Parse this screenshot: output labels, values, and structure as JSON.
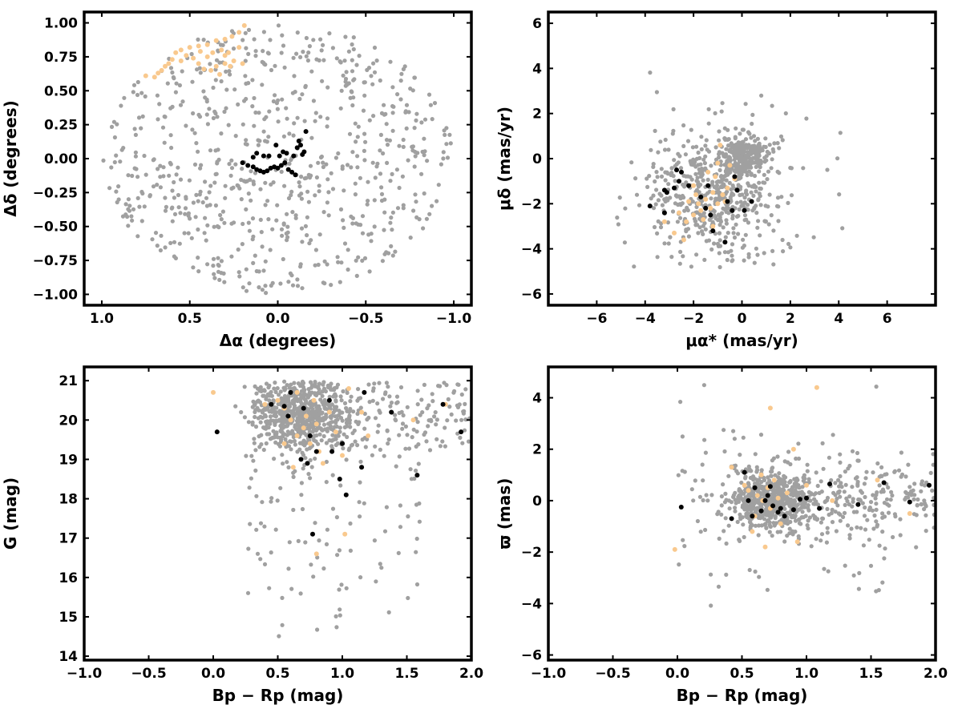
{
  "colors": {
    "field": "#a0a0a0",
    "core": "#000000",
    "selected": "#f9c98e"
  },
  "chart_data": [
    {
      "type": "scatter",
      "xlabel": "Δα (degrees)",
      "ylabel": "Δδ (degrees)",
      "xlim": [
        1.1,
        -1.1
      ],
      "ylim": [
        -1.08,
        1.08
      ],
      "xticks": [
        1.0,
        0.5,
        0.0,
        -0.5,
        -1.0
      ],
      "xtick_labels": [
        "1.0",
        "0.5",
        "0.0",
        "−0.5",
        "−1.0"
      ],
      "yticks": [
        1.0,
        0.75,
        0.5,
        0.25,
        0.0,
        -0.25,
        -0.5,
        -0.75,
        -1.0
      ],
      "ytick_labels": [
        "1.00",
        "0.75",
        "0.50",
        "0.25",
        "0.00",
        "−0.25",
        "−0.50",
        "−0.75",
        "−1.00"
      ],
      "grid": false,
      "series": [
        {
          "color": "#a0a0a0",
          "pattern": "uniform disk of radius 1.0 deg",
          "count": 720
        },
        {
          "color": "#f9c98e",
          "points": [
            [
              0.19,
              0.98
            ],
            [
              0.22,
              0.93
            ],
            [
              0.26,
              0.9
            ],
            [
              0.3,
              0.88
            ],
            [
              0.35,
              0.87
            ],
            [
              0.4,
              0.84
            ],
            [
              0.45,
              0.83
            ],
            [
              0.5,
              0.82
            ],
            [
              0.55,
              0.8
            ],
            [
              0.58,
              0.78
            ],
            [
              0.6,
              0.73
            ],
            [
              0.62,
              0.7
            ],
            [
              0.64,
              0.68
            ],
            [
              0.66,
              0.65
            ],
            [
              0.68,
              0.63
            ],
            [
              0.7,
              0.6
            ],
            [
              0.75,
              0.61
            ],
            [
              0.2,
              0.7
            ],
            [
              0.25,
              0.72
            ],
            [
              0.3,
              0.76
            ],
            [
              0.32,
              0.8
            ],
            [
              0.28,
              0.78
            ],
            [
              0.35,
              0.68
            ],
            [
              0.38,
              0.65
            ],
            [
              0.42,
              0.66
            ],
            [
              0.45,
              0.7
            ],
            [
              0.4,
              0.75
            ],
            [
              0.48,
              0.74
            ],
            [
              0.52,
              0.76
            ],
            [
              0.27,
              0.68
            ],
            [
              0.33,
              0.62
            ],
            [
              0.22,
              0.82
            ],
            [
              0.37,
              0.78
            ],
            [
              0.44,
              0.79
            ],
            [
              0.55,
              0.72
            ],
            [
              0.3,
              0.7
            ]
          ]
        },
        {
          "color": "#000000",
          "points": [
            [
              0.2,
              -0.03
            ],
            [
              0.17,
              -0.05
            ],
            [
              0.14,
              -0.06
            ],
            [
              0.12,
              -0.08
            ],
            [
              0.1,
              -0.09
            ],
            [
              0.08,
              -0.1
            ],
            [
              0.06,
              -0.09
            ],
            [
              0.04,
              -0.07
            ],
            [
              0.02,
              -0.06
            ],
            [
              0.0,
              -0.07
            ],
            [
              -0.02,
              -0.05
            ],
            [
              -0.04,
              -0.03
            ],
            [
              -0.06,
              -0.08
            ],
            [
              -0.08,
              -0.1
            ],
            [
              -0.1,
              -0.12
            ],
            [
              -0.12,
              0.13
            ],
            [
              -0.13,
              0.1
            ],
            [
              -0.15,
              0.05
            ],
            [
              -0.14,
              0.03
            ],
            [
              -0.11,
              0.08
            ],
            [
              -0.09,
              0.02
            ],
            [
              -0.05,
              0.04
            ],
            [
              -0.03,
              0.05
            ],
            [
              -0.01,
              0.02
            ],
            [
              0.01,
              0.1
            ],
            [
              0.05,
              0.02
            ],
            [
              0.08,
              0.02
            ],
            [
              0.12,
              0.04
            ],
            [
              0.14,
              0.01
            ],
            [
              -0.16,
              0.2
            ]
          ]
        }
      ]
    },
    {
      "type": "scatter",
      "xlabel": "μα* (mas/yr)",
      "ylabel": "μδ (mas/yr)",
      "xlim": [
        -8.0,
        8.0
      ],
      "ylim": [
        -6.5,
        6.5
      ],
      "xticks": [
        -6,
        -4,
        -2,
        0,
        2,
        4,
        6
      ],
      "xtick_labels": [
        "−6",
        "−4",
        "−2",
        "0",
        "2",
        "4",
        "6"
      ],
      "yticks": [
        6,
        4,
        2,
        0,
        -2,
        -4,
        -6
      ],
      "ytick_labels": [
        "6",
        "4",
        "2",
        "0",
        "−2",
        "−4",
        "−6"
      ],
      "grid": false,
      "series": [
        {
          "color": "#a0a0a0",
          "pattern": "broad cloud around (-1.0, -1.7) plus dense clump at (0.0, 0.0) and sparse outliers",
          "count": 820
        },
        {
          "color": "#f9c98e",
          "points": [
            [
              -1.0,
              -0.2
            ],
            [
              -0.5,
              -0.3
            ],
            [
              -1.2,
              -1.5
            ],
            [
              -1.5,
              -1.8
            ],
            [
              -1.8,
              -2.0
            ],
            [
              -1.3,
              -2.2
            ],
            [
              -1.0,
              -2.0
            ],
            [
              -0.8,
              -1.6
            ],
            [
              -2.0,
              -2.5
            ],
            [
              -2.3,
              -2.8
            ],
            [
              -2.6,
              -2.4
            ],
            [
              -1.6,
              -2.7
            ],
            [
              -1.1,
              -0.8
            ],
            [
              -0.6,
              -1.3
            ],
            [
              -0.3,
              -0.9
            ],
            [
              -2.0,
              -1.2
            ],
            [
              -1.4,
              -0.6
            ],
            [
              -0.9,
              0.6
            ],
            [
              -2.4,
              -3.6
            ],
            [
              -2.8,
              -3.3
            ],
            [
              -1.7,
              -2.3
            ],
            [
              -1.9,
              -1.6
            ],
            [
              -0.7,
              -1.9
            ],
            [
              -1.2,
              -3.0
            ],
            [
              -3.2,
              -2.8
            ],
            [
              -2.2,
              -1.9
            ]
          ]
        },
        {
          "color": "#000000",
          "points": [
            [
              -3.1,
              -1.5
            ],
            [
              -3.2,
              -1.4
            ],
            [
              -2.8,
              -1.3
            ],
            [
              -2.7,
              -0.5
            ],
            [
              -2.5,
              -0.6
            ],
            [
              -2.2,
              -1.2
            ],
            [
              -1.7,
              -1.7
            ],
            [
              -1.5,
              -2.2
            ],
            [
              -1.3,
              -2.5
            ],
            [
              -1.2,
              -3.2
            ],
            [
              -0.7,
              -3.7
            ],
            [
              -0.6,
              -1.9
            ],
            [
              -0.4,
              -2.3
            ],
            [
              -0.2,
              -1.4
            ],
            [
              0.1,
              -2.3
            ],
            [
              0.4,
              -1.9
            ],
            [
              -0.3,
              -0.8
            ],
            [
              -3.8,
              -2.1
            ],
            [
              -3.2,
              -2.4
            ],
            [
              -1.4,
              -1.2
            ],
            [
              -2.6,
              -1.0
            ]
          ]
        }
      ]
    },
    {
      "type": "scatter",
      "xlabel": "Bp − Rp (mag)",
      "ylabel": "G (mag)",
      "xlim": [
        -1.0,
        2.0
      ],
      "ylim": [
        13.9,
        21.35
      ],
      "xticks": [
        -1.0,
        -0.5,
        0.0,
        0.5,
        1.0,
        1.5,
        2.0
      ],
      "xtick_labels": [
        "−1.0",
        "−0.5",
        "0.0",
        "0.5",
        "1.0",
        "1.5",
        "2.0"
      ],
      "yticks": [
        14,
        15,
        16,
        17,
        18,
        19,
        20,
        21
      ],
      "ytick_labels": [
        "14",
        "15",
        "16",
        "17",
        "18",
        "19",
        "20",
        "21"
      ],
      "grid": false,
      "series": [
        {
          "color": "#a0a0a0",
          "pattern": "dense faint clump at (0.7, 20.2) extending to G=21 and Bp-Rp=2, with a sparse bright tail down to G=14",
          "count": 900
        },
        {
          "color": "#f9c98e",
          "points": [
            [
              0.0,
              20.7
            ],
            [
              0.4,
              20.4
            ],
            [
              0.5,
              20.5
            ],
            [
              0.55,
              20.3
            ],
            [
              0.6,
              20.0
            ],
            [
              0.65,
              19.6
            ],
            [
              0.7,
              19.8
            ],
            [
              0.72,
              20.1
            ],
            [
              0.75,
              19.4
            ],
            [
              0.8,
              19.9
            ],
            [
              0.82,
              19.2
            ],
            [
              0.85,
              18.9
            ],
            [
              0.9,
              20.2
            ],
            [
              1.0,
              19.1
            ],
            [
              1.05,
              20.8
            ],
            [
              1.15,
              20.2
            ],
            [
              1.2,
              19.6
            ],
            [
              1.55,
              20.0
            ],
            [
              1.8,
              20.4
            ],
            [
              0.55,
              19.4
            ],
            [
              0.62,
              18.8
            ],
            [
              0.78,
              20.5
            ],
            [
              0.95,
              19.7
            ],
            [
              1.02,
              17.1
            ],
            [
              0.8,
              16.6
            ],
            [
              0.65,
              20.7
            ]
          ]
        },
        {
          "color": "#000000",
          "points": [
            [
              0.03,
              19.7
            ],
            [
              0.45,
              20.4
            ],
            [
              0.55,
              20.35
            ],
            [
              0.58,
              20.1
            ],
            [
              0.6,
              20.7
            ],
            [
              0.68,
              19.0
            ],
            [
              0.7,
              20.3
            ],
            [
              0.73,
              18.9
            ],
            [
              0.75,
              19.6
            ],
            [
              0.8,
              19.2
            ],
            [
              0.9,
              20.5
            ],
            [
              0.92,
              19.2
            ],
            [
              0.98,
              18.5
            ],
            [
              1.0,
              19.4
            ],
            [
              1.03,
              18.1
            ],
            [
              1.15,
              18.8
            ],
            [
              1.17,
              20.7
            ],
            [
              1.38,
              20.2
            ],
            [
              1.58,
              18.6
            ],
            [
              1.78,
              20.4
            ],
            [
              1.92,
              19.7
            ],
            [
              0.77,
              17.1
            ]
          ]
        }
      ]
    },
    {
      "type": "scatter",
      "xlabel": "Bp − Rp (mag)",
      "ylabel": "ϖ (mas)",
      "xlim": [
        -1.0,
        2.0
      ],
      "ylim": [
        -6.2,
        5.2
      ],
      "xticks": [
        -1.0,
        -0.5,
        0.0,
        0.5,
        1.0,
        1.5,
        2.0
      ],
      "xtick_labels": [
        "−1.0",
        "−0.5",
        "0.0",
        "0.5",
        "1.0",
        "1.5",
        "2.0"
      ],
      "yticks": [
        4,
        2,
        0,
        -2,
        -4,
        -6
      ],
      "ytick_labels": [
        "4",
        "2",
        "0",
        "−2",
        "−4",
        "−6"
      ],
      "grid": false,
      "series": [
        {
          "color": "#a0a0a0",
          "pattern": "dense clump at (0.7, 0.0) with horizontal spread to Bp-Rp=2 and vertical scatter",
          "count": 900
        },
        {
          "color": "#f9c98e",
          "points": [
            [
              -0.02,
              -1.9
            ],
            [
              0.42,
              1.3
            ],
            [
              0.55,
              0.4
            ],
            [
              0.6,
              -0.6
            ],
            [
              0.62,
              0.2
            ],
            [
              0.65,
              1.0
            ],
            [
              0.68,
              -1.8
            ],
            [
              0.7,
              0.5
            ],
            [
              0.72,
              -0.3
            ],
            [
              0.75,
              0.8
            ],
            [
              0.78,
              0.1
            ],
            [
              0.8,
              -0.9
            ],
            [
              0.85,
              0.3
            ],
            [
              0.9,
              2.0
            ],
            [
              0.93,
              -1.6
            ],
            [
              1.0,
              0.6
            ],
            [
              1.08,
              4.4
            ],
            [
              1.2,
              0.0
            ],
            [
              1.55,
              0.8
            ],
            [
              1.8,
              -0.5
            ],
            [
              0.58,
              -1.2
            ],
            [
              0.72,
              3.6
            ],
            [
              0.66,
              0.0
            ],
            [
              0.52,
              0.6
            ]
          ]
        },
        {
          "color": "#000000",
          "points": [
            [
              0.03,
              -0.25
            ],
            [
              0.42,
              -0.7
            ],
            [
              0.52,
              1.1
            ],
            [
              0.55,
              0.0
            ],
            [
              0.58,
              -0.6
            ],
            [
              0.6,
              0.5
            ],
            [
              0.65,
              -0.4
            ],
            [
              0.7,
              0.2
            ],
            [
              0.72,
              0.55
            ],
            [
              0.74,
              -0.2
            ],
            [
              0.78,
              -0.45
            ],
            [
              0.8,
              -0.3
            ],
            [
              0.83,
              -0.6
            ],
            [
              0.9,
              -0.35
            ],
            [
              0.95,
              0.05
            ],
            [
              1.0,
              0.1
            ],
            [
              1.1,
              -0.3
            ],
            [
              1.18,
              0.65
            ],
            [
              1.4,
              -0.15
            ],
            [
              1.6,
              0.7
            ],
            [
              1.8,
              -0.05
            ],
            [
              1.95,
              0.6
            ],
            [
              0.68,
              0.0
            ]
          ]
        }
      ]
    }
  ]
}
